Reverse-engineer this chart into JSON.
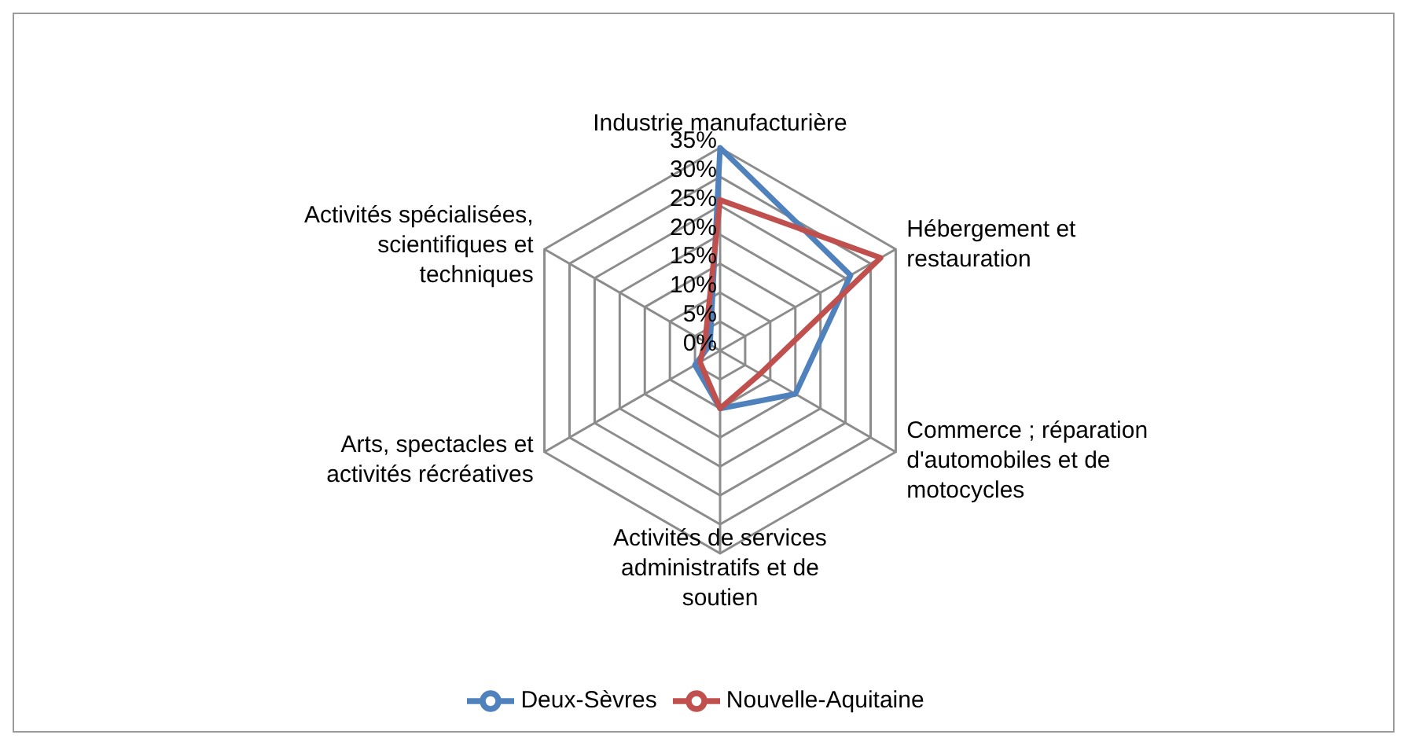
{
  "chart_data": {
    "type": "radar",
    "categories": [
      "Industrie manufacturière",
      "Hébergement et restauration",
      "Commerce ; réparation d'automobiles et de motocycles",
      "Activités de services administratifs et de soutien",
      "Arts, spectacles et activités récréatives",
      "Activités spécialisées, scientifiques et techniques"
    ],
    "series": [
      {
        "name": "Deux-Sèvres",
        "color": "#4f81bd",
        "values": [
          35,
          26,
          15,
          10,
          5,
          2
        ]
      },
      {
        "name": "Nouvelle-Aquitaine",
        "color": "#c0504d",
        "values": [
          26,
          32,
          8,
          10,
          4,
          3
        ]
      }
    ],
    "ylim": [
      0,
      35
    ],
    "yticks": [
      {
        "value": 0,
        "label": "0%"
      },
      {
        "value": 5,
        "label": "5%"
      },
      {
        "value": 10,
        "label": "10%"
      },
      {
        "value": 15,
        "label": "15%"
      },
      {
        "value": 20,
        "label": "20%"
      },
      {
        "value": 25,
        "label": "25%"
      },
      {
        "value": 30,
        "label": "30%"
      },
      {
        "value": 35,
        "label": "35%"
      }
    ],
    "grid": true,
    "legend": "bottom",
    "marker": "none",
    "line_style": "solid"
  }
}
